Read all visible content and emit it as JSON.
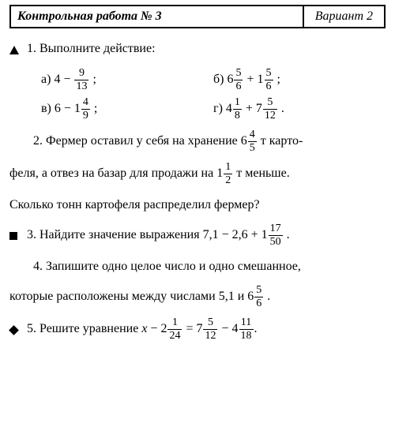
{
  "header": {
    "title": "Контрольная работа № 3",
    "variant": "Вариант 2"
  },
  "task1": {
    "marker": "triangle",
    "prompt": "1. Выполните действие:",
    "a_lbl": "а)",
    "a_pre": "4 −",
    "a_num": "9",
    "a_den": "13",
    "a_tail": ";",
    "b_lbl": "б)",
    "b_w1": "6",
    "b_n1": "5",
    "b_d1": "6",
    "b_mid": "+ 1",
    "b_n2": "5",
    "b_d2": "6",
    "b_tail": ";",
    "v_lbl": "в)",
    "v_pre": "6 − 1",
    "v_num": "4",
    "v_den": "9",
    "v_tail": ";",
    "g_lbl": "г)",
    "g_w1": "4",
    "g_n1": "1",
    "g_d1": "8",
    "g_mid": "+ 7",
    "g_n2": "5",
    "g_d2": "12",
    "g_tail": "."
  },
  "task2": {
    "t1a": "2. Фермер оставил у себя на хранение 6",
    "t1_num": "4",
    "t1_den": "5",
    "t1b": "т карто-",
    "t2a": "феля, а отвез на базар для продажи на 1",
    "t2_num": "1",
    "t2_den": "2",
    "t2b": " т меньше.",
    "t3": "Сколько тонн картофеля распределил фермер?"
  },
  "task3": {
    "marker": "square",
    "a": "3. Найдите значение выражения 7,1 − 2,6 + 1",
    "num": "17",
    "den": "50",
    "tail": "."
  },
  "task4": {
    "a": "4. Запишите одно целое число и одно смешанное,",
    "b": "которые расположены между числами 5,1 и 6",
    "num": "5",
    "den": "6",
    "tail": "."
  },
  "task5": {
    "marker": "diamond",
    "a": "5. Решите уравнение ",
    "var": "x",
    "m1": " − 2",
    "n1": "1",
    "d1": "24",
    "m2": " = 7",
    "n2": "5",
    "d2": "12",
    "m3": " − 4",
    "n3": "11",
    "d3": "18",
    "tail": "."
  }
}
